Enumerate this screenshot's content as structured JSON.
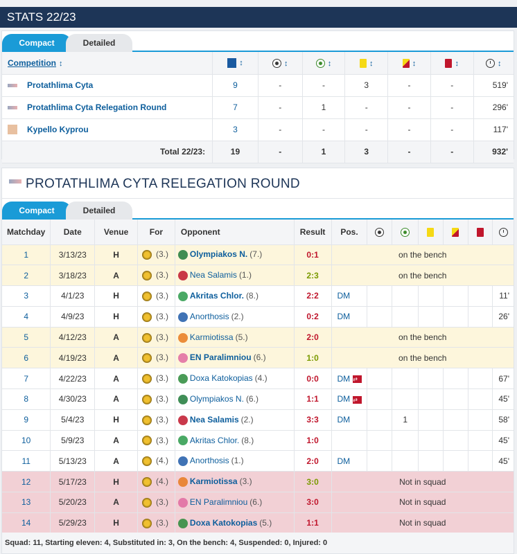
{
  "header": {
    "title": "STATS 22/23"
  },
  "tabs": {
    "compact": "Compact",
    "detailed": "Detailed"
  },
  "summary": {
    "col_competition": "Competition",
    "rows": [
      {
        "name": "Protathlima Cyta",
        "apps": "9",
        "goals": "-",
        "assists": "-",
        "yellow": "3",
        "second_yellow": "-",
        "red": "-",
        "minutes": "519'"
      },
      {
        "name": "Protathlima Cyta Relegation Round",
        "apps": "7",
        "goals": "-",
        "assists": "1",
        "yellow": "-",
        "second_yellow": "-",
        "red": "-",
        "minutes": "296'"
      },
      {
        "name": "Kypello Kyprou",
        "apps": "3",
        "goals": "-",
        "assists": "-",
        "yellow": "-",
        "second_yellow": "-",
        "red": "-",
        "minutes": "117'"
      }
    ],
    "total": {
      "label": "Total 22/23:",
      "apps": "19",
      "goals": "-",
      "assists": "1",
      "yellow": "3",
      "second_yellow": "-",
      "red": "-",
      "minutes": "932'"
    }
  },
  "section": {
    "title": "PROTATHLIMA CYTA RELEGATION ROUND"
  },
  "matches_table": {
    "headers": {
      "matchday": "Matchday",
      "date": "Date",
      "venue": "Venue",
      "for": "For",
      "opponent": "Opponent",
      "result": "Result",
      "pos": "Pos."
    },
    "rows": [
      {
        "md": "1",
        "date": "3/13/23",
        "venue": "H",
        "for_rank": "(3.)",
        "opp": "Olympiakos N.",
        "opp_rank": "(7.)",
        "opp_bold": true,
        "result": "0:1",
        "res_color": "red",
        "status": "on the bench",
        "crest": "#1e7a3a"
      },
      {
        "md": "2",
        "date": "3/18/23",
        "venue": "A",
        "for_rank": "(3.)",
        "opp": "Nea Salamis",
        "opp_rank": "(1.)",
        "opp_bold": false,
        "result": "2:3",
        "res_color": "green",
        "status": "on the bench",
        "crest": "#c0162c"
      },
      {
        "md": "3",
        "date": "4/1/23",
        "venue": "H",
        "for_rank": "(3.)",
        "opp": "Akritas Chlor.",
        "opp_rank": "(8.)",
        "opp_bold": true,
        "result": "2:2",
        "res_color": "red",
        "pos": "DM",
        "minutes": "11'",
        "crest": "#2a9a4a"
      },
      {
        "md": "4",
        "date": "4/9/23",
        "venue": "H",
        "for_rank": "(3.)",
        "opp": "Anorthosis",
        "opp_rank": "(2.)",
        "opp_bold": false,
        "result": "0:2",
        "res_color": "red",
        "pos": "DM",
        "minutes": "26'",
        "crest": "#1e5aa8"
      },
      {
        "md": "5",
        "date": "4/12/23",
        "venue": "A",
        "for_rank": "(3.)",
        "opp": "Karmiotissa",
        "opp_rank": "(5.)",
        "opp_bold": false,
        "result": "2:0",
        "res_color": "red",
        "status": "on the bench",
        "crest": "#e87a1e"
      },
      {
        "md": "6",
        "date": "4/19/23",
        "venue": "A",
        "for_rank": "(3.)",
        "opp": "EN Paralimniou",
        "opp_rank": "(6.)",
        "opp_bold": true,
        "result": "1:0",
        "res_color": "green",
        "status": "on the bench",
        "crest": "#e06aa0"
      },
      {
        "md": "7",
        "date": "4/22/23",
        "venue": "A",
        "for_rank": "(3.)",
        "opp": "Doxa Katokopias",
        "opp_rank": "(4.)",
        "opp_bold": false,
        "result": "0:0",
        "res_color": "red",
        "pos": "DM",
        "sub": true,
        "minutes": "67'",
        "crest": "#2a8a3a"
      },
      {
        "md": "8",
        "date": "4/30/23",
        "venue": "A",
        "for_rank": "(3.)",
        "opp": "Olympiakos N.",
        "opp_rank": "(6.)",
        "opp_bold": false,
        "result": "1:1",
        "res_color": "red",
        "pos": "DM",
        "sub": true,
        "minutes": "45'",
        "crest": "#1e7a3a"
      },
      {
        "md": "9",
        "date": "5/4/23",
        "venue": "H",
        "for_rank": "(3.)",
        "opp": "Nea Salamis",
        "opp_rank": "(2.)",
        "opp_bold": true,
        "result": "3:3",
        "res_color": "red",
        "pos": "DM",
        "assists": "1",
        "minutes": "58'",
        "crest": "#c0162c"
      },
      {
        "md": "10",
        "date": "5/9/23",
        "venue": "A",
        "for_rank": "(3.)",
        "opp": "Akritas Chlor.",
        "opp_rank": "(8.)",
        "opp_bold": false,
        "result": "1:0",
        "res_color": "red",
        "minutes": "45'",
        "crest": "#2a9a4a"
      },
      {
        "md": "11",
        "date": "5/13/23",
        "venue": "A",
        "for_rank": "(4.)",
        "opp": "Anorthosis",
        "opp_rank": "(1.)",
        "opp_bold": false,
        "result": "2:0",
        "res_color": "red",
        "pos": "DM",
        "minutes": "45'",
        "crest": "#1e5aa8"
      },
      {
        "md": "12",
        "date": "5/17/23",
        "venue": "H",
        "for_rank": "(4.)",
        "opp": "Karmiotissa",
        "opp_rank": "(3.)",
        "opp_bold": true,
        "result": "3:0",
        "res_color": "green",
        "squad": "Not in squad",
        "crest": "#e87a1e"
      },
      {
        "md": "13",
        "date": "5/20/23",
        "venue": "A",
        "for_rank": "(3.)",
        "opp": "EN Paralimniou",
        "opp_rank": "(6.)",
        "opp_bold": false,
        "result": "3:0",
        "res_color": "red",
        "squad": "Not in squad",
        "crest": "#e06aa0"
      },
      {
        "md": "14",
        "date": "5/29/23",
        "venue": "H",
        "for_rank": "(3.)",
        "opp": "Doxa Katokopias",
        "opp_rank": "(5.)",
        "opp_bold": true,
        "result": "1:1",
        "res_color": "red",
        "squad": "Not in squad",
        "crest": "#2a8a3a"
      }
    ]
  },
  "footer": {
    "text": "Squad: 11, Starting eleven: 4, Substituted in: 3, On the bench: 4, Suspended: 0, Injured: 0"
  },
  "colors": {
    "brand": "#1d3557",
    "accent": "#1a9bd7",
    "bench_bg": "#fdf6dc",
    "squad_bg": "#f2d0d5",
    "red": "#c0162c",
    "green": "#7a9a00"
  }
}
